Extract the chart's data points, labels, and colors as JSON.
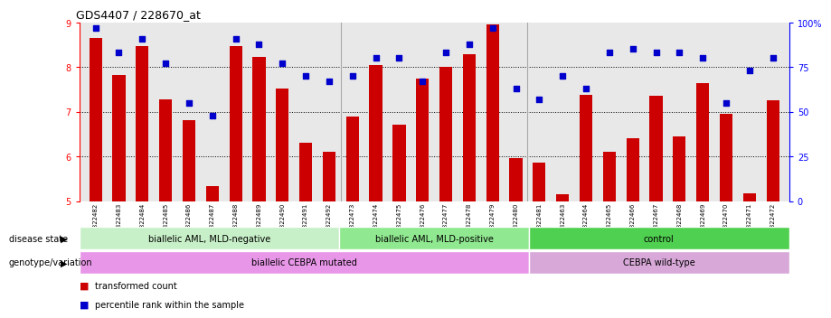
{
  "title": "GDS4407 / 228670_at",
  "samples": [
    "GSM822482",
    "GSM822483",
    "GSM822484",
    "GSM822485",
    "GSM822486",
    "GSM822487",
    "GSM822488",
    "GSM822489",
    "GSM822490",
    "GSM822491",
    "GSM822492",
    "GSM822473",
    "GSM822474",
    "GSM822475",
    "GSM822476",
    "GSM822477",
    "GSM822478",
    "GSM822479",
    "GSM822480",
    "GSM822481",
    "GSM822463",
    "GSM822464",
    "GSM822465",
    "GSM822466",
    "GSM822467",
    "GSM822468",
    "GSM822469",
    "GSM822470",
    "GSM822471",
    "GSM822472"
  ],
  "bar_values": [
    8.65,
    7.82,
    8.48,
    7.28,
    6.82,
    5.33,
    8.47,
    8.22,
    7.52,
    6.3,
    6.1,
    6.9,
    8.05,
    6.72,
    7.75,
    8.0,
    8.28,
    8.95,
    5.97,
    5.87,
    5.15,
    7.38,
    6.1,
    6.4,
    7.35,
    6.45,
    7.65,
    6.95,
    5.18,
    7.25
  ],
  "scatter_values": [
    97,
    83,
    91,
    77,
    55,
    48,
    91,
    88,
    77,
    70,
    67,
    70,
    80,
    80,
    67,
    83,
    88,
    97,
    63,
    57,
    70,
    63,
    83,
    85,
    83,
    83,
    80,
    55,
    73,
    80
  ],
  "bar_color": "#cc0000",
  "scatter_color": "#0000cc",
  "ylim_left": [
    5,
    9
  ],
  "ylim_right": [
    0,
    100
  ],
  "yticks_left": [
    5,
    6,
    7,
    8,
    9
  ],
  "yticks_right": [
    0,
    25,
    50,
    75,
    100
  ],
  "grid_lines": [
    6,
    7,
    8
  ],
  "disease_state_groups": [
    {
      "label": "biallelic AML, MLD-negative",
      "start": 0,
      "end": 11,
      "color": "#c8f0c8"
    },
    {
      "label": "biallelic AML, MLD-positive",
      "start": 11,
      "end": 19,
      "color": "#90e890"
    },
    {
      "label": "control",
      "start": 19,
      "end": 30,
      "color": "#50d050"
    }
  ],
  "genotype_groups": [
    {
      "label": "biallelic CEBPA mutated",
      "start": 0,
      "end": 19,
      "color": "#e896e8"
    },
    {
      "label": "CEBPA wild-type",
      "start": 19,
      "end": 30,
      "color": "#d8a8d8"
    }
  ],
  "disease_dividers": [
    11,
    19
  ],
  "background_color": "#e8e8e8",
  "legend_items": [
    {
      "label": "transformed count",
      "color": "#cc0000"
    },
    {
      "label": "percentile rank within the sample",
      "color": "#0000cc"
    }
  ]
}
